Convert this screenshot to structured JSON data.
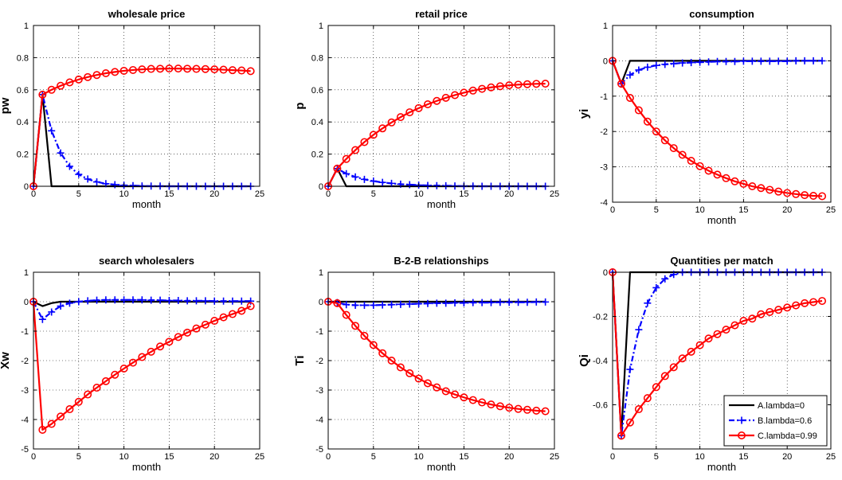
{
  "chart_data": [
    {
      "type": "line",
      "title": "wholesale price",
      "xlabel": "month",
      "ylabel": "pw",
      "xlim": [
        0,
        25
      ],
      "ylim": [
        0,
        1
      ],
      "xticks": [
        0,
        5,
        10,
        15,
        20,
        25
      ],
      "yticks": [
        0,
        0.2,
        0.4,
        0.6,
        0.8,
        1
      ],
      "ytick_labels": [
        "0",
        "0.2",
        "0.4",
        "0.6",
        "0.8",
        "1"
      ],
      "grid": true,
      "x": [
        0,
        1,
        2,
        3,
        4,
        5,
        6,
        7,
        8,
        9,
        10,
        11,
        12,
        13,
        14,
        15,
        16,
        17,
        18,
        19,
        20,
        21,
        22,
        23,
        24
      ],
      "series": [
        {
          "name": "A.lambda=0",
          "values": [
            0,
            0.57,
            0,
            0,
            0,
            0,
            0,
            0,
            0,
            0,
            0,
            0,
            0,
            0,
            0,
            0,
            0,
            0,
            0,
            0,
            0,
            0,
            0,
            0,
            0
          ]
        },
        {
          "name": "B.lambda=0.6",
          "values": [
            0,
            0.57,
            0.345,
            0.207,
            0.124,
            0.074,
            0.045,
            0.027,
            0.016,
            0.01,
            0.006,
            0.004,
            0.002,
            0.001,
            0.001,
            0,
            0,
            0,
            0,
            0,
            0,
            0,
            0,
            0,
            0
          ]
        },
        {
          "name": "C.lambda=0.99",
          "values": [
            0,
            0.57,
            0.6,
            0.625,
            0.646,
            0.664,
            0.679,
            0.692,
            0.703,
            0.711,
            0.718,
            0.723,
            0.727,
            0.73,
            0.731,
            0.732,
            0.732,
            0.731,
            0.73,
            0.729,
            0.727,
            0.725,
            0.722,
            0.72,
            0.716
          ]
        }
      ]
    },
    {
      "type": "line",
      "title": "retail price",
      "xlabel": "month",
      "ylabel": "p",
      "xlim": [
        0,
        25
      ],
      "ylim": [
        0,
        1
      ],
      "xticks": [
        0,
        5,
        10,
        15,
        20,
        25
      ],
      "yticks": [
        0,
        0.2,
        0.4,
        0.6,
        0.8,
        1
      ],
      "ytick_labels": [
        "0",
        "0.2",
        "0.4",
        "0.6",
        "0.8",
        "1"
      ],
      "grid": true,
      "x": [
        0,
        1,
        2,
        3,
        4,
        5,
        6,
        7,
        8,
        9,
        10,
        11,
        12,
        13,
        14,
        15,
        16,
        17,
        18,
        19,
        20,
        21,
        22,
        23,
        24
      ],
      "series": [
        {
          "name": "A.lambda=0",
          "values": [
            0,
            0.11,
            0,
            0,
            0,
            0,
            0,
            0,
            0,
            0,
            0,
            0,
            0,
            0,
            0,
            0,
            0,
            0,
            0,
            0,
            0,
            0,
            0,
            0,
            0
          ]
        },
        {
          "name": "B.lambda=0.6",
          "values": [
            0,
            0.11,
            0.078,
            0.058,
            0.043,
            0.032,
            0.024,
            0.018,
            0.013,
            0.01,
            0.007,
            0.005,
            0.004,
            0.003,
            0.002,
            0.001,
            0.001,
            0,
            0,
            0,
            0,
            0,
            0,
            0,
            0
          ]
        },
        {
          "name": "C.lambda=0.99",
          "values": [
            0,
            0.11,
            0.17,
            0.225,
            0.275,
            0.32,
            0.36,
            0.397,
            0.43,
            0.46,
            0.486,
            0.51,
            0.531,
            0.55,
            0.567,
            0.582,
            0.595,
            0.606,
            0.615,
            0.622,
            0.628,
            0.632,
            0.635,
            0.637,
            0.638
          ]
        }
      ]
    },
    {
      "type": "line",
      "title": "consumption",
      "xlabel": "month",
      "ylabel": "yi",
      "xlim": [
        0,
        25
      ],
      "ylim": [
        -4,
        1
      ],
      "xticks": [
        0,
        5,
        10,
        15,
        20,
        25
      ],
      "yticks": [
        -4,
        -3,
        -2,
        -1,
        0,
        1
      ],
      "ytick_labels": [
        "-4",
        "-3",
        "-2",
        "-1",
        "0",
        "1"
      ],
      "grid": true,
      "x": [
        0,
        1,
        2,
        3,
        4,
        5,
        6,
        7,
        8,
        9,
        10,
        11,
        12,
        13,
        14,
        15,
        16,
        17,
        18,
        19,
        20,
        21,
        22,
        23,
        24
      ],
      "series": [
        {
          "name": "A.lambda=0",
          "values": [
            0,
            -0.65,
            0,
            0,
            0,
            0,
            0,
            0,
            0,
            0,
            0,
            0,
            0,
            0,
            0,
            0,
            0,
            0,
            0,
            0,
            0,
            0,
            0,
            0,
            0
          ]
        },
        {
          "name": "B.lambda=0.6",
          "values": [
            0,
            -0.65,
            -0.4,
            -0.26,
            -0.18,
            -0.13,
            -0.1,
            -0.08,
            -0.06,
            -0.05,
            -0.04,
            -0.03,
            -0.02,
            -0.02,
            -0.02,
            -0.01,
            -0.01,
            -0.01,
            -0.01,
            -0.01,
            -0.01,
            0,
            0,
            0,
            0
          ]
        },
        {
          "name": "C.lambda=0.99",
          "values": [
            0,
            -0.65,
            -1.05,
            -1.4,
            -1.72,
            -2,
            -2.25,
            -2.47,
            -2.66,
            -2.83,
            -2.98,
            -3.11,
            -3.22,
            -3.32,
            -3.41,
            -3.48,
            -3.55,
            -3.6,
            -3.65,
            -3.7,
            -3.74,
            -3.77,
            -3.8,
            -3.82,
            -3.83
          ]
        }
      ]
    },
    {
      "type": "line",
      "title": "search wholesalers",
      "xlabel": "month",
      "ylabel": "Xw",
      "xlim": [
        0,
        25
      ],
      "ylim": [
        -5,
        1
      ],
      "xticks": [
        0,
        5,
        10,
        15,
        20,
        25
      ],
      "yticks": [
        -5,
        -4,
        -3,
        -2,
        -1,
        0,
        1
      ],
      "ytick_labels": [
        "-5",
        "-4",
        "-3",
        "-2",
        "-1",
        "0",
        "1"
      ],
      "grid": true,
      "x": [
        0,
        1,
        2,
        3,
        4,
        5,
        6,
        7,
        8,
        9,
        10,
        11,
        12,
        13,
        14,
        15,
        16,
        17,
        18,
        19,
        20,
        21,
        22,
        23,
        24
      ],
      "series": [
        {
          "name": "A.lambda=0",
          "values": [
            0,
            -0.15,
            -0.05,
            0,
            0,
            0,
            0,
            0,
            0,
            0,
            0,
            0,
            0,
            0,
            0,
            0,
            0,
            0,
            0,
            0,
            0,
            0,
            0,
            0,
            0
          ]
        },
        {
          "name": "B.lambda=0.6",
          "values": [
            0,
            -0.6,
            -0.35,
            -0.15,
            -0.05,
            0,
            0.03,
            0.05,
            0.06,
            0.06,
            0.06,
            0.06,
            0.06,
            0.05,
            0.05,
            0.04,
            0.04,
            0.03,
            0.03,
            0.03,
            0.02,
            0.02,
            0.02,
            0.02,
            0.02
          ]
        },
        {
          "name": "C.lambda=0.99",
          "values": [
            0,
            -4.35,
            -4.15,
            -3.9,
            -3.65,
            -3.4,
            -3.15,
            -2.92,
            -2.7,
            -2.48,
            -2.27,
            -2.07,
            -1.88,
            -1.7,
            -1.52,
            -1.36,
            -1.2,
            -1.05,
            -0.91,
            -0.78,
            -0.65,
            -0.53,
            -0.42,
            -0.31,
            -0.15
          ]
        }
      ]
    },
    {
      "type": "line",
      "title": "B-2-B relationships",
      "xlabel": "month",
      "ylabel": "Ti",
      "xlim": [
        0,
        25
      ],
      "ylim": [
        -5,
        1
      ],
      "xticks": [
        0,
        5,
        10,
        15,
        20,
        25
      ],
      "yticks": [
        -5,
        -4,
        -3,
        -2,
        -1,
        0,
        1
      ],
      "ytick_labels": [
        "-5",
        "-4",
        "-3",
        "-2",
        "-1",
        "0",
        "1"
      ],
      "grid": true,
      "x": [
        0,
        1,
        2,
        3,
        4,
        5,
        6,
        7,
        8,
        9,
        10,
        11,
        12,
        13,
        14,
        15,
        16,
        17,
        18,
        19,
        20,
        21,
        22,
        23,
        24
      ],
      "series": [
        {
          "name": "A.lambda=0",
          "values": [
            0,
            0,
            0,
            0,
            0,
            0,
            0,
            0,
            0,
            0,
            0,
            0,
            0,
            0,
            0,
            0,
            0,
            0,
            0,
            0,
            0,
            0,
            0,
            0,
            0
          ]
        },
        {
          "name": "B.lambda=0.6",
          "values": [
            0,
            -0.03,
            -0.1,
            -0.12,
            -0.12,
            -0.12,
            -0.11,
            -0.1,
            -0.09,
            -0.08,
            -0.07,
            -0.06,
            -0.05,
            -0.05,
            -0.04,
            -0.04,
            -0.03,
            -0.03,
            -0.03,
            -0.02,
            -0.02,
            -0.02,
            -0.02,
            -0.01,
            -0.01
          ]
        },
        {
          "name": "C.lambda=0.99",
          "values": [
            0,
            -0.05,
            -0.45,
            -0.82,
            -1.16,
            -1.47,
            -1.75,
            -2,
            -2.23,
            -2.43,
            -2.61,
            -2.77,
            -2.91,
            -3.04,
            -3.15,
            -3.25,
            -3.34,
            -3.42,
            -3.49,
            -3.55,
            -3.6,
            -3.64,
            -3.67,
            -3.7,
            -3.72
          ]
        }
      ]
    },
    {
      "type": "line",
      "title": "Quantities per match",
      "xlabel": "month",
      "ylabel": "Qi",
      "xlim": [
        0,
        25
      ],
      "ylim": [
        -0.8,
        0
      ],
      "xticks": [
        0,
        5,
        10,
        15,
        20,
        25
      ],
      "yticks": [
        -0.8,
        -0.6,
        -0.4,
        -0.2,
        0
      ],
      "ytick_labels": [
        "",
        "-0.6",
        "-0.4",
        "-0.2",
        "0"
      ],
      "grid": true,
      "legend": "bottom-right",
      "x": [
        0,
        1,
        2,
        3,
        4,
        5,
        6,
        7,
        8,
        9,
        10,
        11,
        12,
        13,
        14,
        15,
        16,
        17,
        18,
        19,
        20,
        21,
        22,
        23,
        24
      ],
      "series": [
        {
          "name": "A.lambda=0",
          "values": [
            0,
            -0.74,
            0,
            0,
            0,
            0,
            0,
            0,
            0,
            0,
            0,
            0,
            0,
            0,
            0,
            0,
            0,
            0,
            0,
            0,
            0,
            0,
            0,
            0,
            0
          ]
        },
        {
          "name": "B.lambda=0.6",
          "values": [
            0,
            -0.74,
            -0.44,
            -0.26,
            -0.14,
            -0.07,
            -0.03,
            -0.01,
            0,
            0,
            0,
            0,
            0,
            0,
            0,
            0,
            0,
            0,
            0,
            0,
            0,
            0,
            0,
            0,
            0
          ]
        },
        {
          "name": "C.lambda=0.99",
          "values": [
            0,
            -0.74,
            -0.68,
            -0.62,
            -0.57,
            -0.52,
            -0.47,
            -0.43,
            -0.39,
            -0.36,
            -0.33,
            -0.3,
            -0.28,
            -0.26,
            -0.24,
            -0.22,
            -0.21,
            -0.19,
            -0.18,
            -0.17,
            -0.16,
            -0.15,
            -0.14,
            -0.135,
            -0.13
          ]
        }
      ]
    }
  ],
  "legend": {
    "entries": [
      "A.lambda=0",
      "B.lambda=0.6",
      "C.lambda=0.99"
    ]
  },
  "colors": {
    "A.lambda=0": "#000000",
    "B.lambda=0.6": "#0000ff",
    "C.lambda=0.99": "#ff0000"
  }
}
